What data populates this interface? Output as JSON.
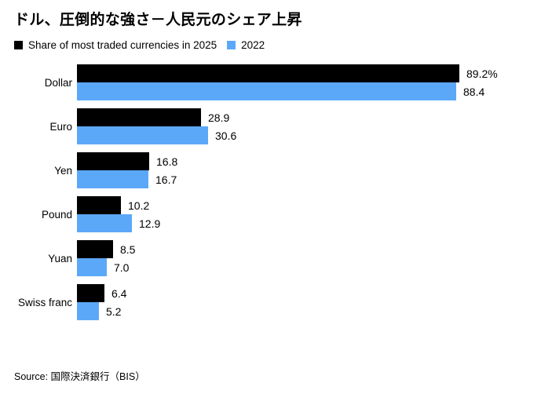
{
  "title": "ドル、圧倒的な強さ－人民元のシェア上昇",
  "legend": {
    "items": [
      {
        "label": "Share of most traded currencies in 2025",
        "color": "#000000"
      },
      {
        "label": "2022",
        "color": "#5CA8F8"
      }
    ]
  },
  "source": "Source: 国際決済銀行（BIS）",
  "chart_data": {
    "type": "bar",
    "orientation": "horizontal",
    "title": "ドル、圧倒的な強さ－人民元のシェア上昇",
    "categories": [
      "Dollar",
      "Euro",
      "Yen",
      "Pound",
      "Yuan",
      "Swiss franc"
    ],
    "series": [
      {
        "name": "Share of most traded currencies in 2025",
        "color": "#000000",
        "values": [
          89.2,
          28.9,
          16.8,
          10.2,
          8.5,
          6.4
        ],
        "value_labels": [
          "89.2%",
          "28.9",
          "16.8",
          "10.2",
          "8.5",
          "6.4"
        ]
      },
      {
        "name": "2022",
        "color": "#5CA8F8",
        "values": [
          88.4,
          30.6,
          16.7,
          12.9,
          7.0,
          5.2
        ],
        "value_labels": [
          "88.4",
          "30.6",
          "16.7",
          "12.9",
          "7.0",
          "5.2"
        ]
      }
    ],
    "xlabel": "",
    "ylabel": "",
    "xlim": [
      0,
      100
    ],
    "grid": false,
    "legend_position": "top",
    "value_labels_shown": true
  }
}
